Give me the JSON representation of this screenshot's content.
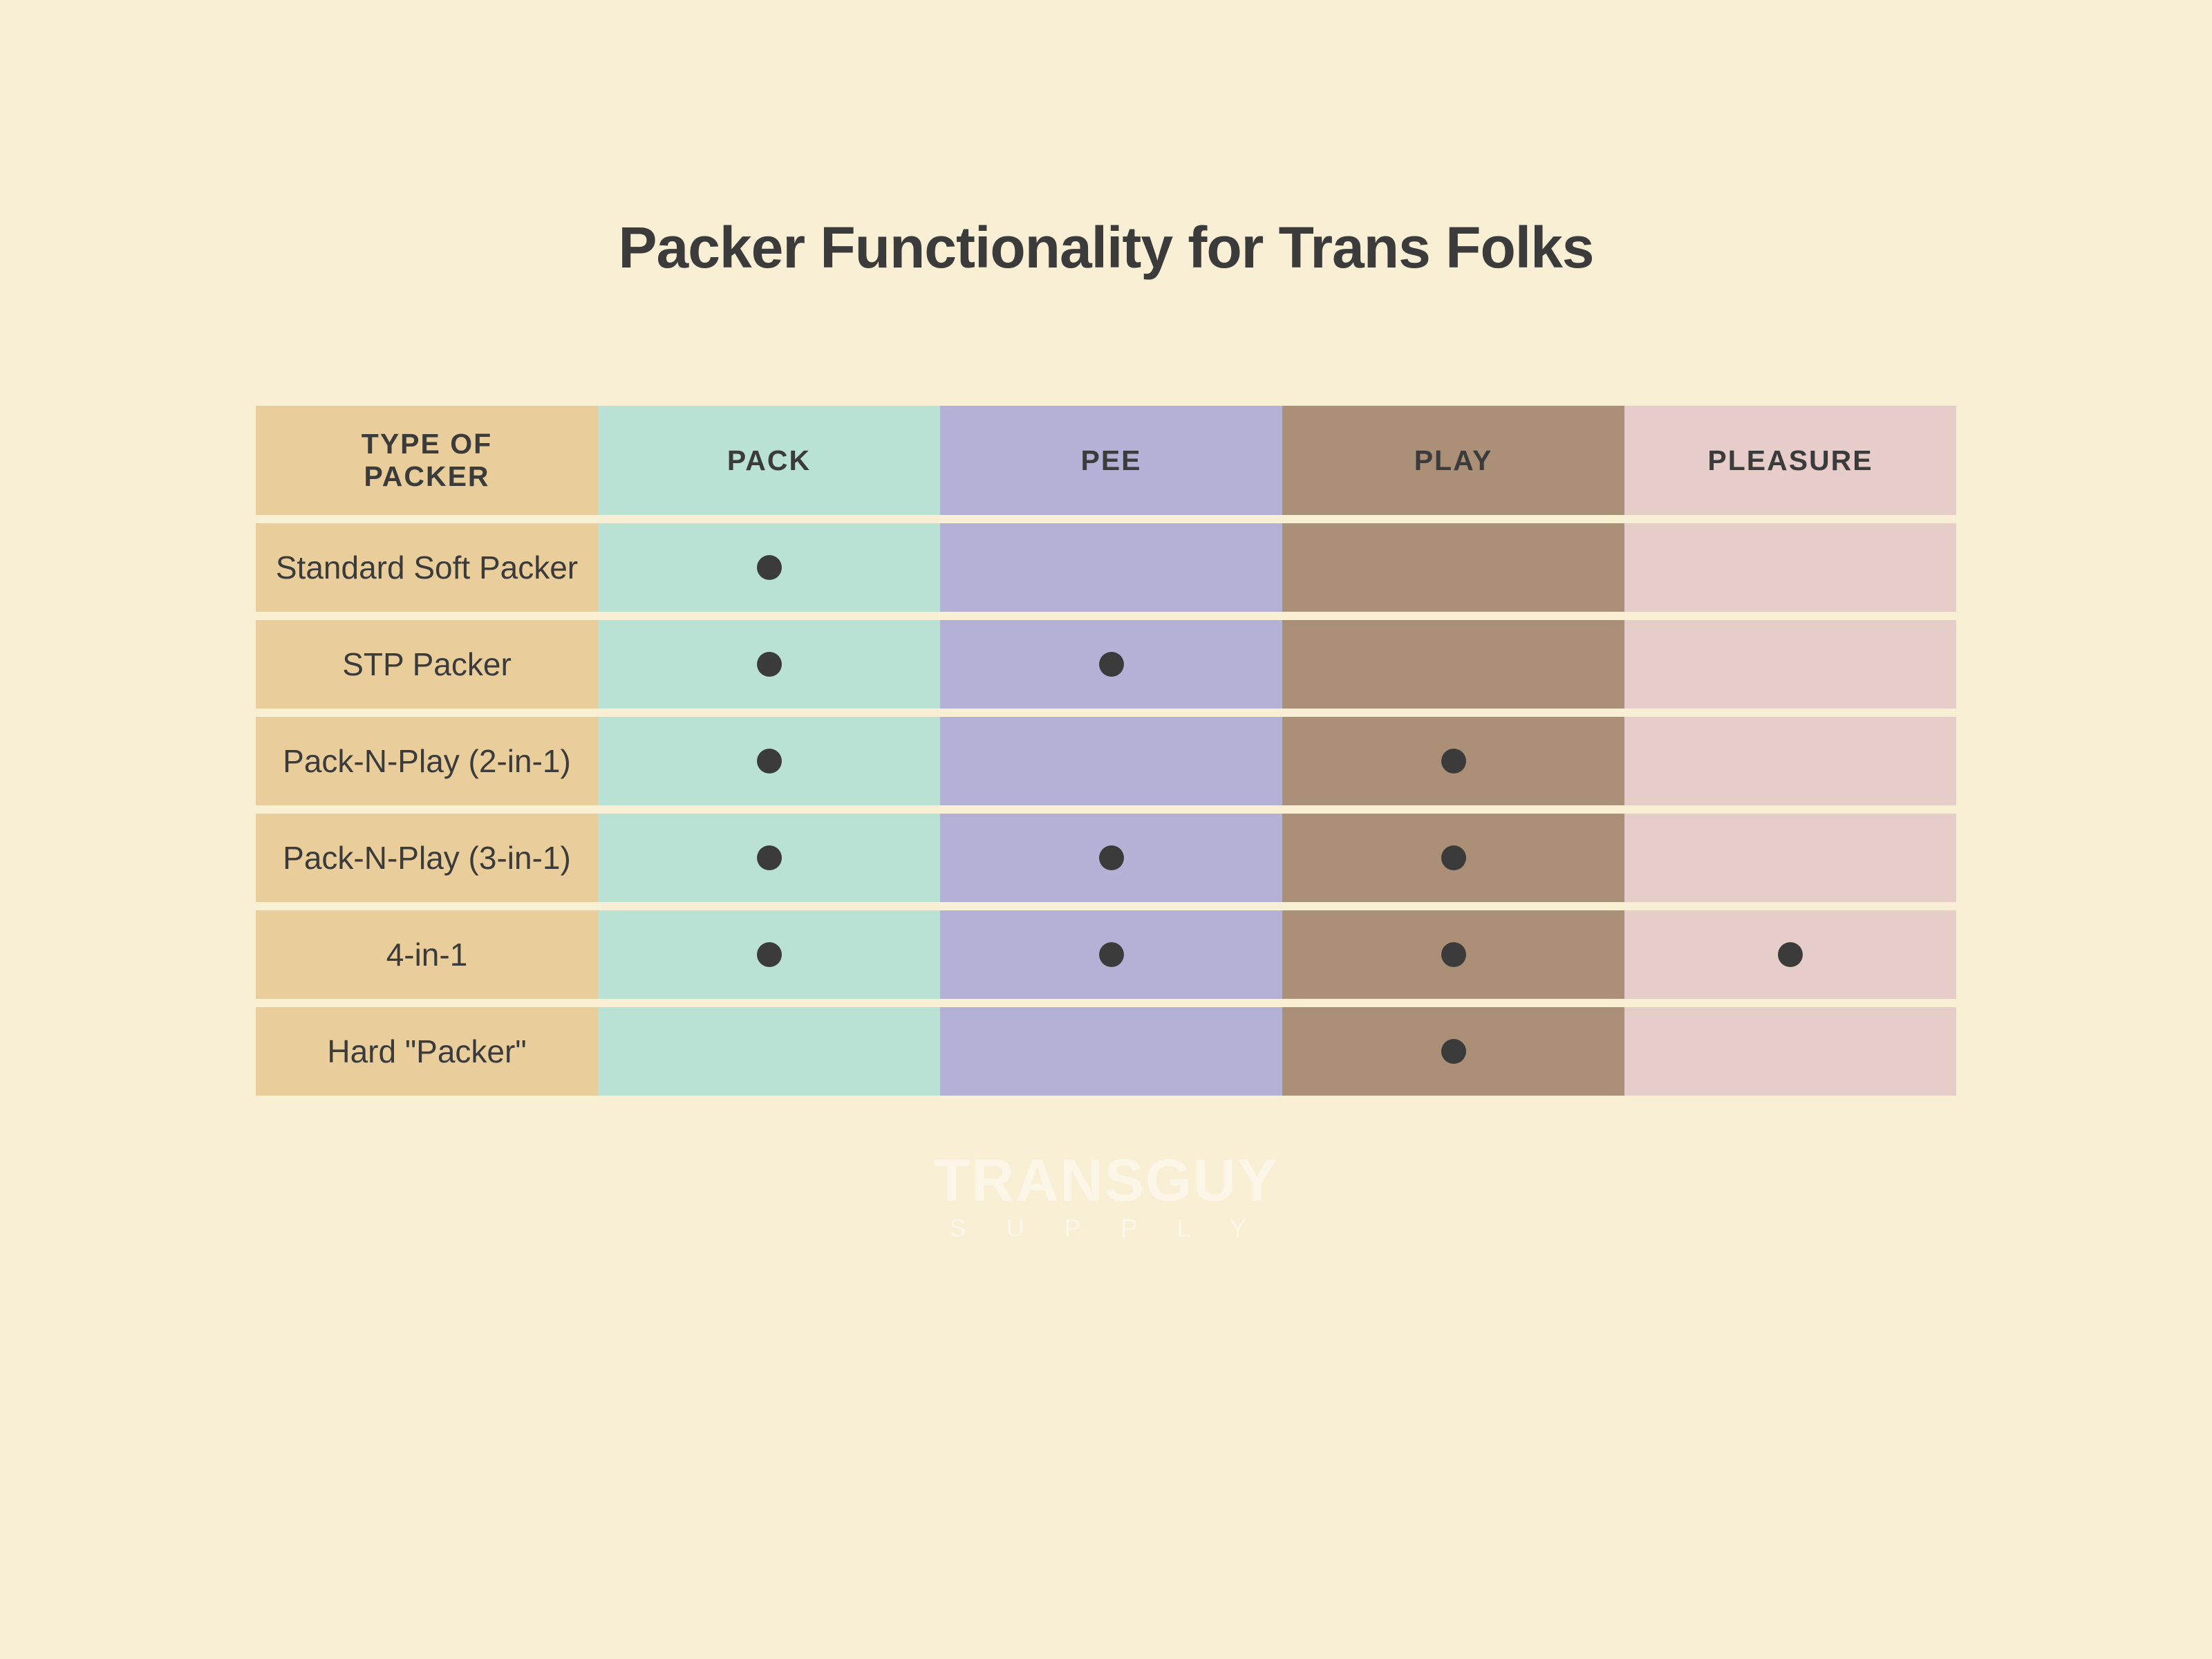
{
  "title": "Packer Functionality for Trans Folks",
  "title_fontsize": 84,
  "title_color": "#3b3b3b",
  "background_color": "#f8efd4",
  "table": {
    "header_fontsize": 41,
    "header_text_color": "#3b3b3b",
    "row_label_fontsize": 46,
    "row_label_text_color": "#3b3b3b",
    "dot_color": "#3b3b3b",
    "dot_size": 36,
    "row_gap_color": "#f8efd4",
    "columns": [
      {
        "key": "type",
        "label": "TYPE OF\nPACKER",
        "header_bg": "#e9cd9b",
        "cell_bg": "#e9cd9b"
      },
      {
        "key": "pack",
        "label": "PACK",
        "header_bg": "#b9e2d4",
        "cell_bg": "#b9e2d4"
      },
      {
        "key": "pee",
        "label": "PEE",
        "header_bg": "#b3b2d6",
        "cell_bg": "#b3b2d6"
      },
      {
        "key": "play",
        "label": "PLAY",
        "header_bg": "#ab9077",
        "cell_bg": "#ab9077"
      },
      {
        "key": "pleasure",
        "label": "PLEASURE",
        "header_bg": "#e7cdca",
        "cell_bg": "#e7cdca"
      }
    ],
    "rows": [
      {
        "label": "Standard Soft Packer",
        "pack": true,
        "pee": false,
        "play": false,
        "pleasure": false
      },
      {
        "label": "STP Packer",
        "pack": true,
        "pee": true,
        "play": false,
        "pleasure": false
      },
      {
        "label": "Pack-N-Play (2-in-1)",
        "pack": true,
        "pee": false,
        "play": true,
        "pleasure": false
      },
      {
        "label": "Pack-N-Play (3-in-1)",
        "pack": true,
        "pee": true,
        "play": true,
        "pleasure": false
      },
      {
        "label": "4-in-1",
        "pack": true,
        "pee": true,
        "play": true,
        "pleasure": true
      },
      {
        "label": "Hard \"Packer\"",
        "pack": false,
        "pee": false,
        "play": true,
        "pleasure": false
      }
    ]
  },
  "logo": {
    "main": "TRANSGUY",
    "sub": "S U P P L Y",
    "color": "#fbf6e7",
    "main_fontsize": 86,
    "sub_fontsize": 36,
    "sub_letter_spacing": 24
  }
}
